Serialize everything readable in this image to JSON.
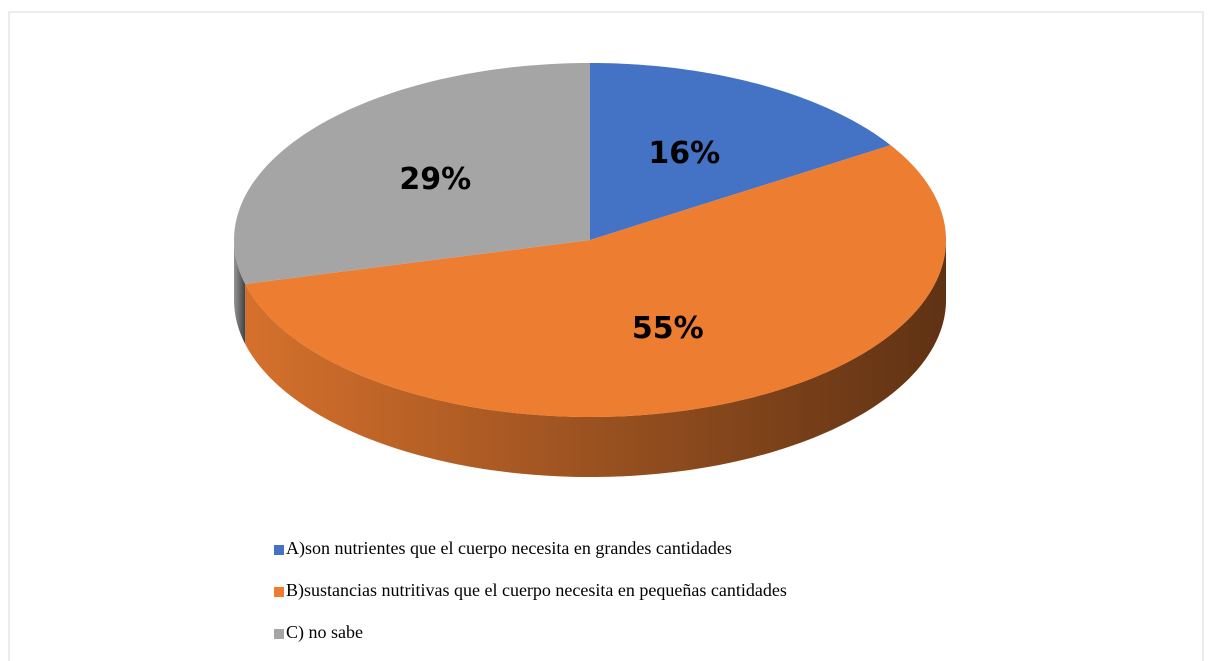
{
  "chart_data": {
    "type": "pie",
    "categories": [
      "A)son nutrientes que el cuerpo necesita en grandes cantidades",
      "B)sustancias nutritivas que el cuerpo necesita en pequeñas cantidades",
      "C) no sabe"
    ],
    "values": [
      16,
      55,
      29
    ],
    "value_labels": [
      "16%",
      "55%",
      "29%"
    ],
    "colors": [
      "#4472c4",
      "#ed7d31",
      "#a5a5a5"
    ],
    "legend": "bottom"
  }
}
